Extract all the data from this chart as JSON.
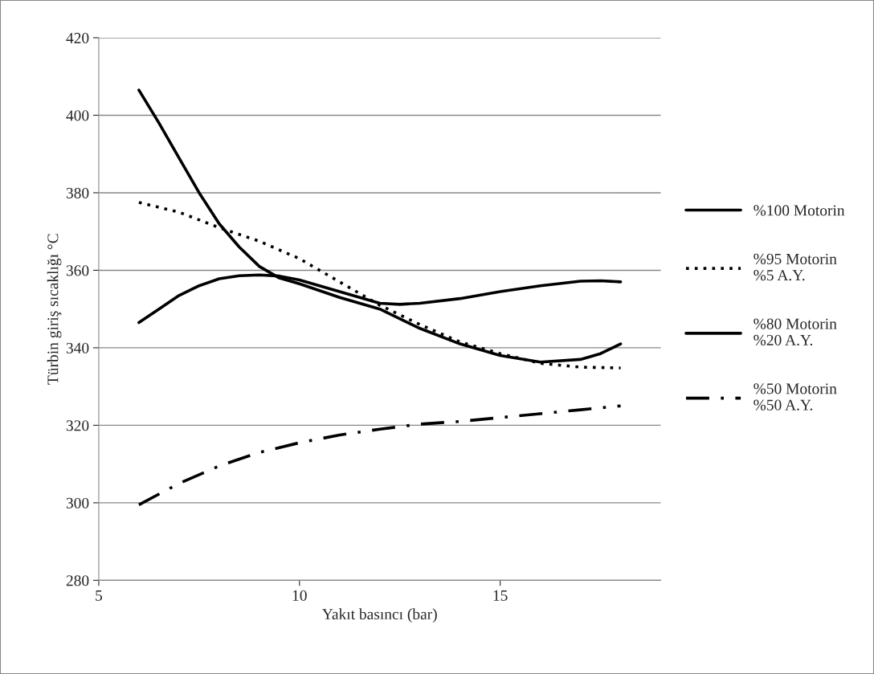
{
  "chart_data": {
    "type": "line",
    "xlabel": "Yakıt basıncı (bar)",
    "ylabel": "Türbin giriş sıcaklığı °C",
    "xlim": [
      5,
      19
    ],
    "xticks": [
      5,
      10,
      15
    ],
    "ylim": [
      280,
      420
    ],
    "yticks": [
      280,
      300,
      320,
      340,
      360,
      380,
      400,
      420
    ],
    "grid": "y",
    "legend": "right",
    "marker": "none",
    "series": [
      {
        "name": "%100 Motorin",
        "color": "#000000",
        "line_style": "solid",
        "x": [
          6,
          6.5,
          7,
          7.5,
          8,
          8.5,
          9,
          9.5,
          10,
          11,
          12,
          13,
          14,
          15,
          16,
          17,
          17.5,
          18
        ],
        "values": [
          406.5,
          398,
          389,
          380,
          372,
          366,
          361,
          358,
          356.5,
          353,
          350,
          345,
          341,
          338,
          336.3,
          337,
          338.5,
          341
        ]
      },
      {
        "name": "%95 Motorin\n%5 A.Y.",
        "color": "#000000",
        "line_style": "dotted",
        "x": [
          6,
          7,
          8,
          9,
          10,
          11,
          12,
          13,
          14,
          15,
          16,
          17,
          18
        ],
        "values": [
          377.5,
          375,
          371,
          367.5,
          363,
          357,
          351,
          346,
          341.5,
          338.5,
          336,
          335,
          334.8
        ]
      },
      {
        "name": "%80 Motorin\n%20 A.Y.",
        "color": "#000000",
        "line_style": "solid",
        "x": [
          6,
          6.5,
          7,
          7.5,
          8,
          8.5,
          9,
          9.5,
          10,
          11,
          12,
          12.5,
          13,
          14,
          15,
          16,
          17,
          17.5,
          18
        ],
        "values": [
          346.5,
          350,
          353.5,
          356,
          357.8,
          358.6,
          358.8,
          358.5,
          357.5,
          354.5,
          351.5,
          351.2,
          351.5,
          352.7,
          354.5,
          356,
          357.2,
          357.3,
          357
        ]
      },
      {
        "name": "%50 Motorin\n%50 A.Y.",
        "color": "#000000",
        "line_style": "dashdot",
        "x": [
          6,
          7,
          8,
          9,
          10,
          11,
          12,
          13,
          14,
          15,
          16,
          17,
          18
        ],
        "values": [
          299.5,
          305,
          309.5,
          313,
          315.5,
          317.5,
          319,
          320.3,
          321,
          322,
          323,
          324,
          325
        ]
      }
    ]
  }
}
